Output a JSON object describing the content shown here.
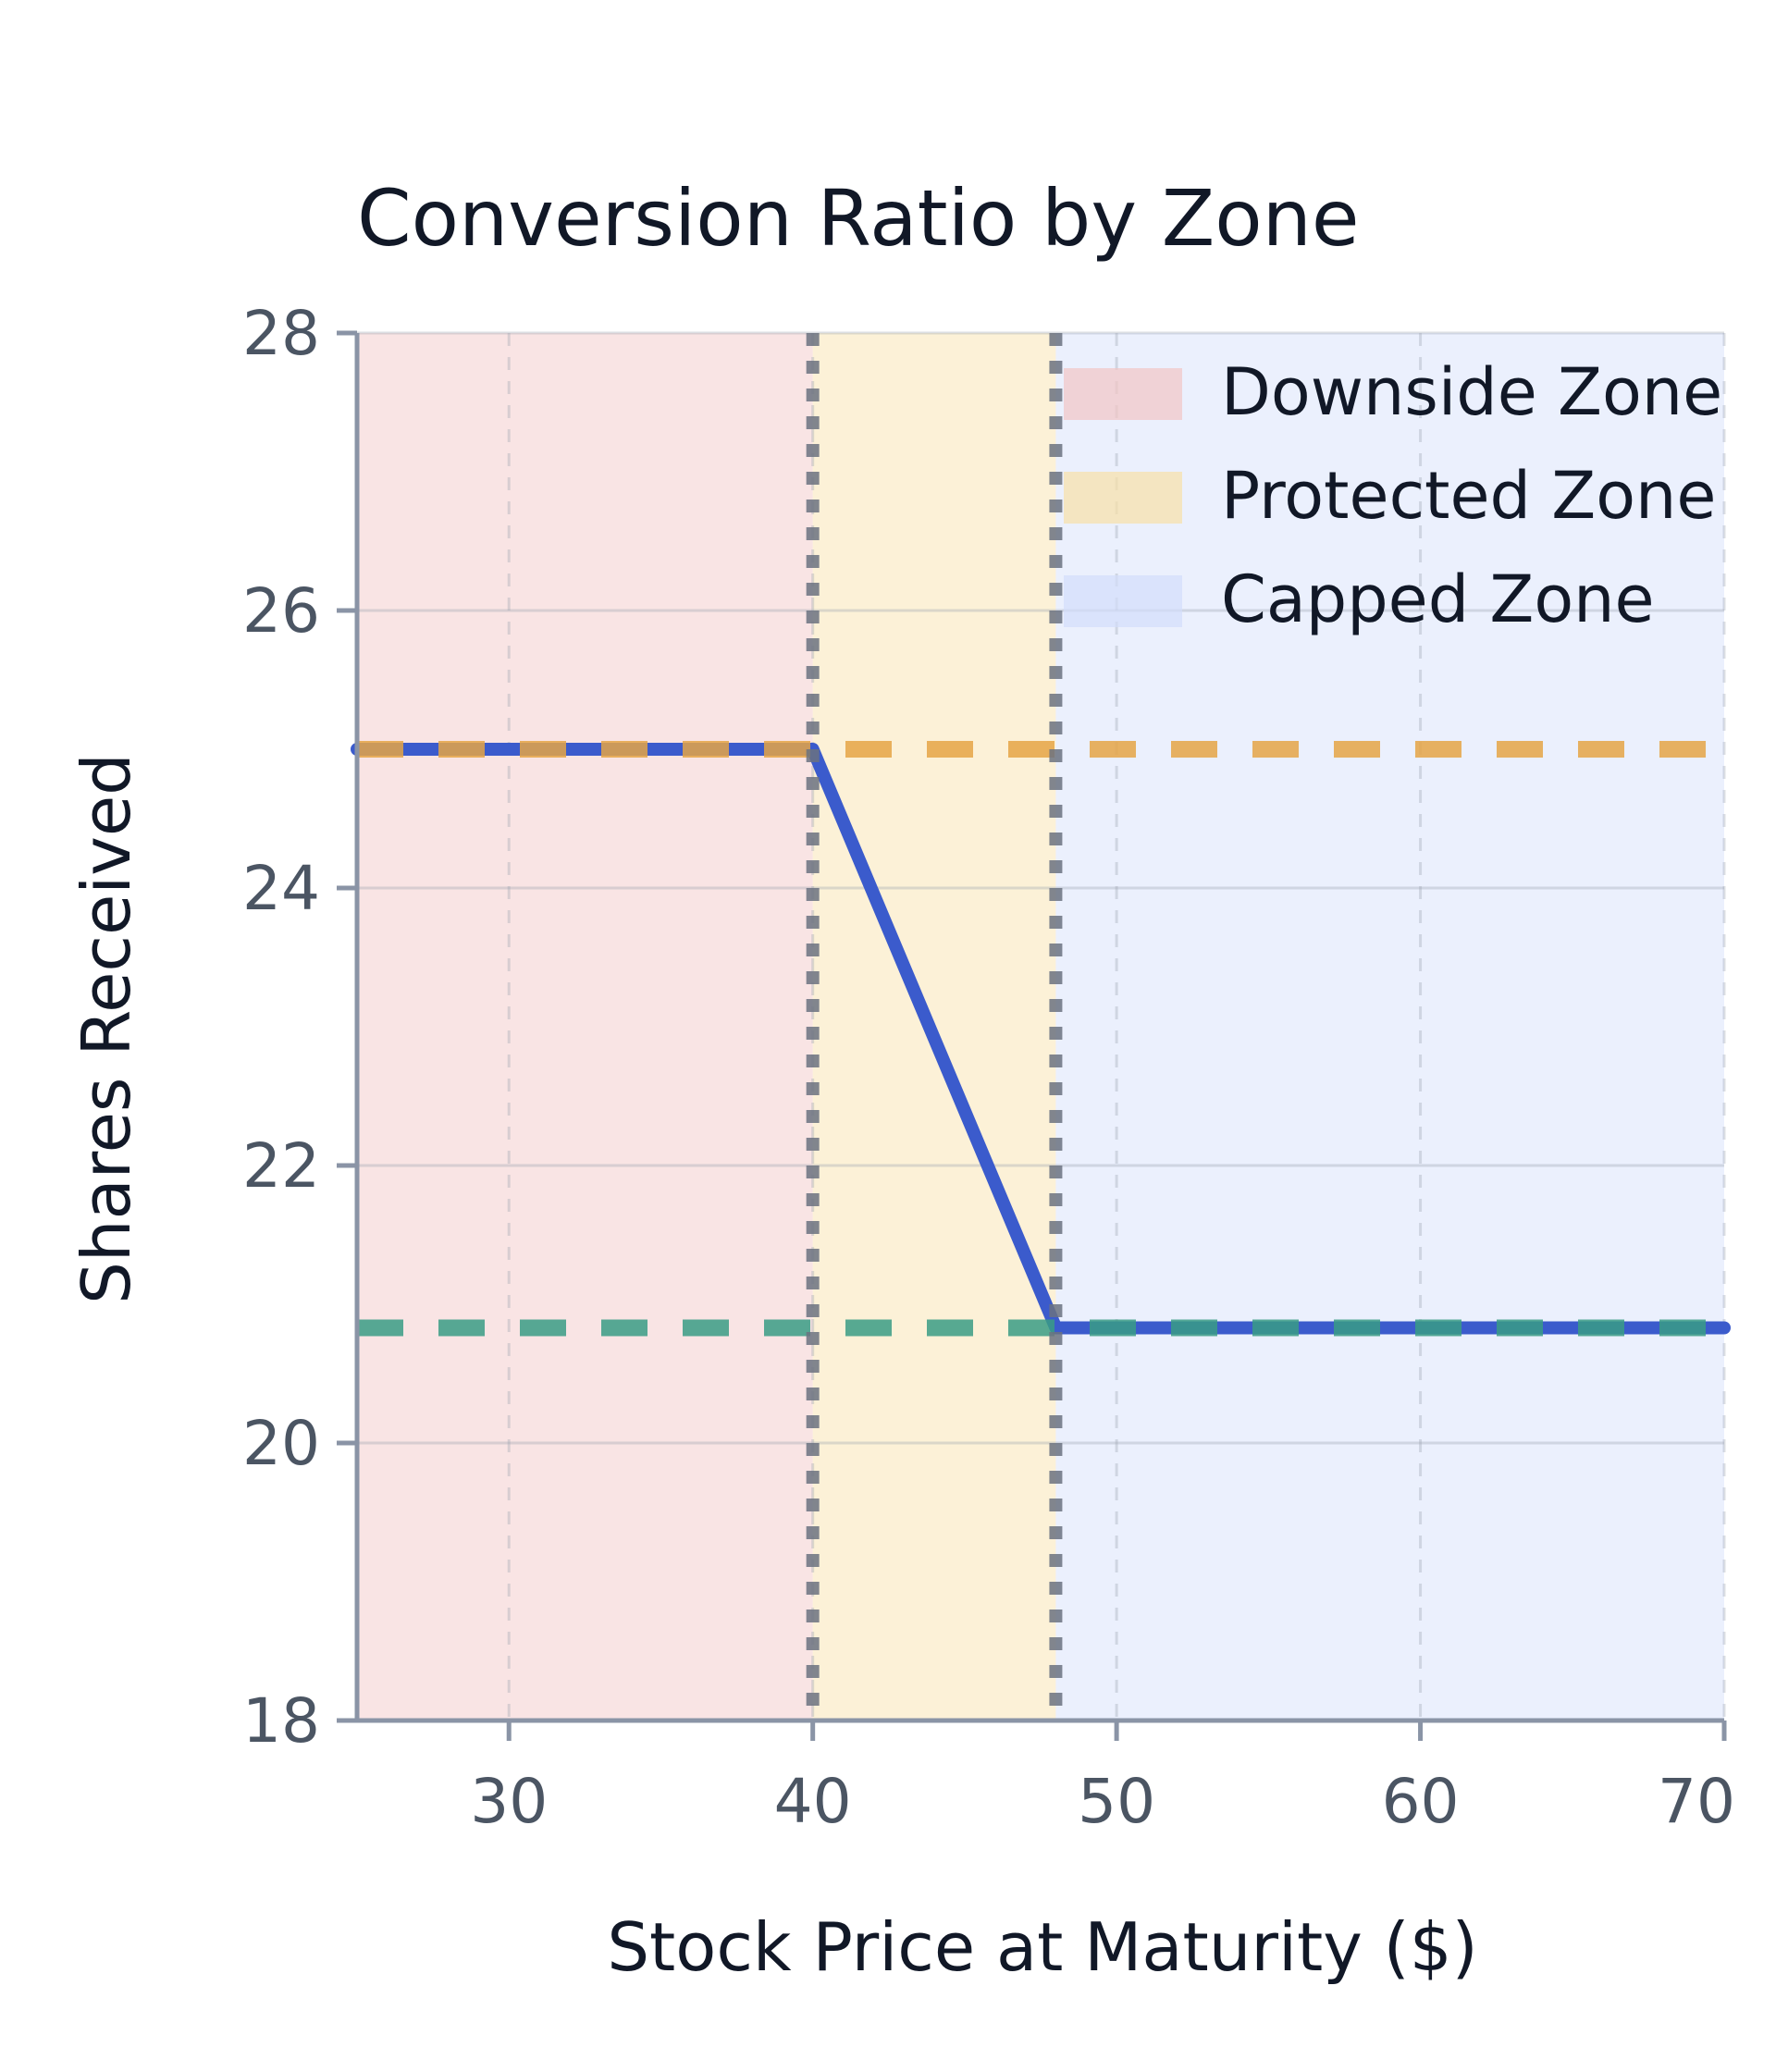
{
  "chart_data": {
    "type": "line",
    "title": "Conversion Ratio by Zone",
    "xlabel": "Stock Price at Maturity ($)",
    "ylabel": "Shares Received",
    "xlim": [
      25,
      70
    ],
    "ylim": [
      18,
      28
    ],
    "x_ticks": [
      30,
      40,
      50,
      60,
      70
    ],
    "y_ticks": [
      18,
      20,
      22,
      24,
      26,
      28
    ],
    "grid": true,
    "legend_position": "top-right",
    "zones": [
      {
        "name": "Downside Zone",
        "x_range": [
          25,
          40
        ],
        "color": "#f2c4c4"
      },
      {
        "name": "Protected Zone",
        "x_range": [
          40,
          48
        ],
        "color": "#f8dfa6"
      },
      {
        "name": "Capped Zone",
        "x_range": [
          48,
          70
        ],
        "color": "#d3ddfb"
      }
    ],
    "series": [
      {
        "x": [
          25,
          40,
          48,
          70
        ],
        "y": [
          25,
          25,
          20.83,
          20.83
        ],
        "color": "#3b5bcc"
      }
    ],
    "reference_lines": [
      {
        "orientation": "horizontal",
        "y": 25,
        "color": "#e5a445",
        "style": "dashed"
      },
      {
        "orientation": "horizontal",
        "y": 20.83,
        "color": "#3a9c85",
        "style": "dashed"
      },
      {
        "orientation": "vertical",
        "x": 40,
        "color": "#6b7280",
        "style": "dotted"
      },
      {
        "orientation": "vertical",
        "x": 48,
        "color": "#6b7280",
        "style": "dotted"
      }
    ]
  }
}
